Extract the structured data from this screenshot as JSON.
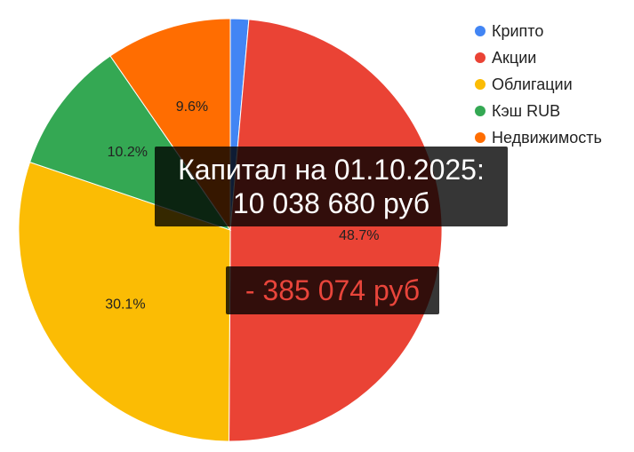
{
  "chart_data": {
    "type": "pie",
    "series": [
      {
        "name": "Крипто",
        "value": 1.4,
        "color": "#4285f4",
        "label": ""
      },
      {
        "name": "Акции",
        "value": 48.7,
        "color": "#ea4335",
        "label": "48.7%"
      },
      {
        "name": "Облигации",
        "value": 30.1,
        "color": "#fbbc04",
        "label": "30.1%"
      },
      {
        "name": "Кэш RUB",
        "value": 10.2,
        "color": "#34a853",
        "label": "10.2%"
      },
      {
        "name": "Недвижимость",
        "value": 9.6,
        "color": "#ff6d01",
        "label": "9.6%"
      }
    ],
    "legend_position": "top-right"
  },
  "overlay": {
    "capital_line1": "Капитал на 01.10.2025:",
    "capital_line2": "10 038 680 руб",
    "change": "- 385 074 руб"
  },
  "colors": {
    "change_text": "#e9453b",
    "overlay_background": "#000000"
  }
}
